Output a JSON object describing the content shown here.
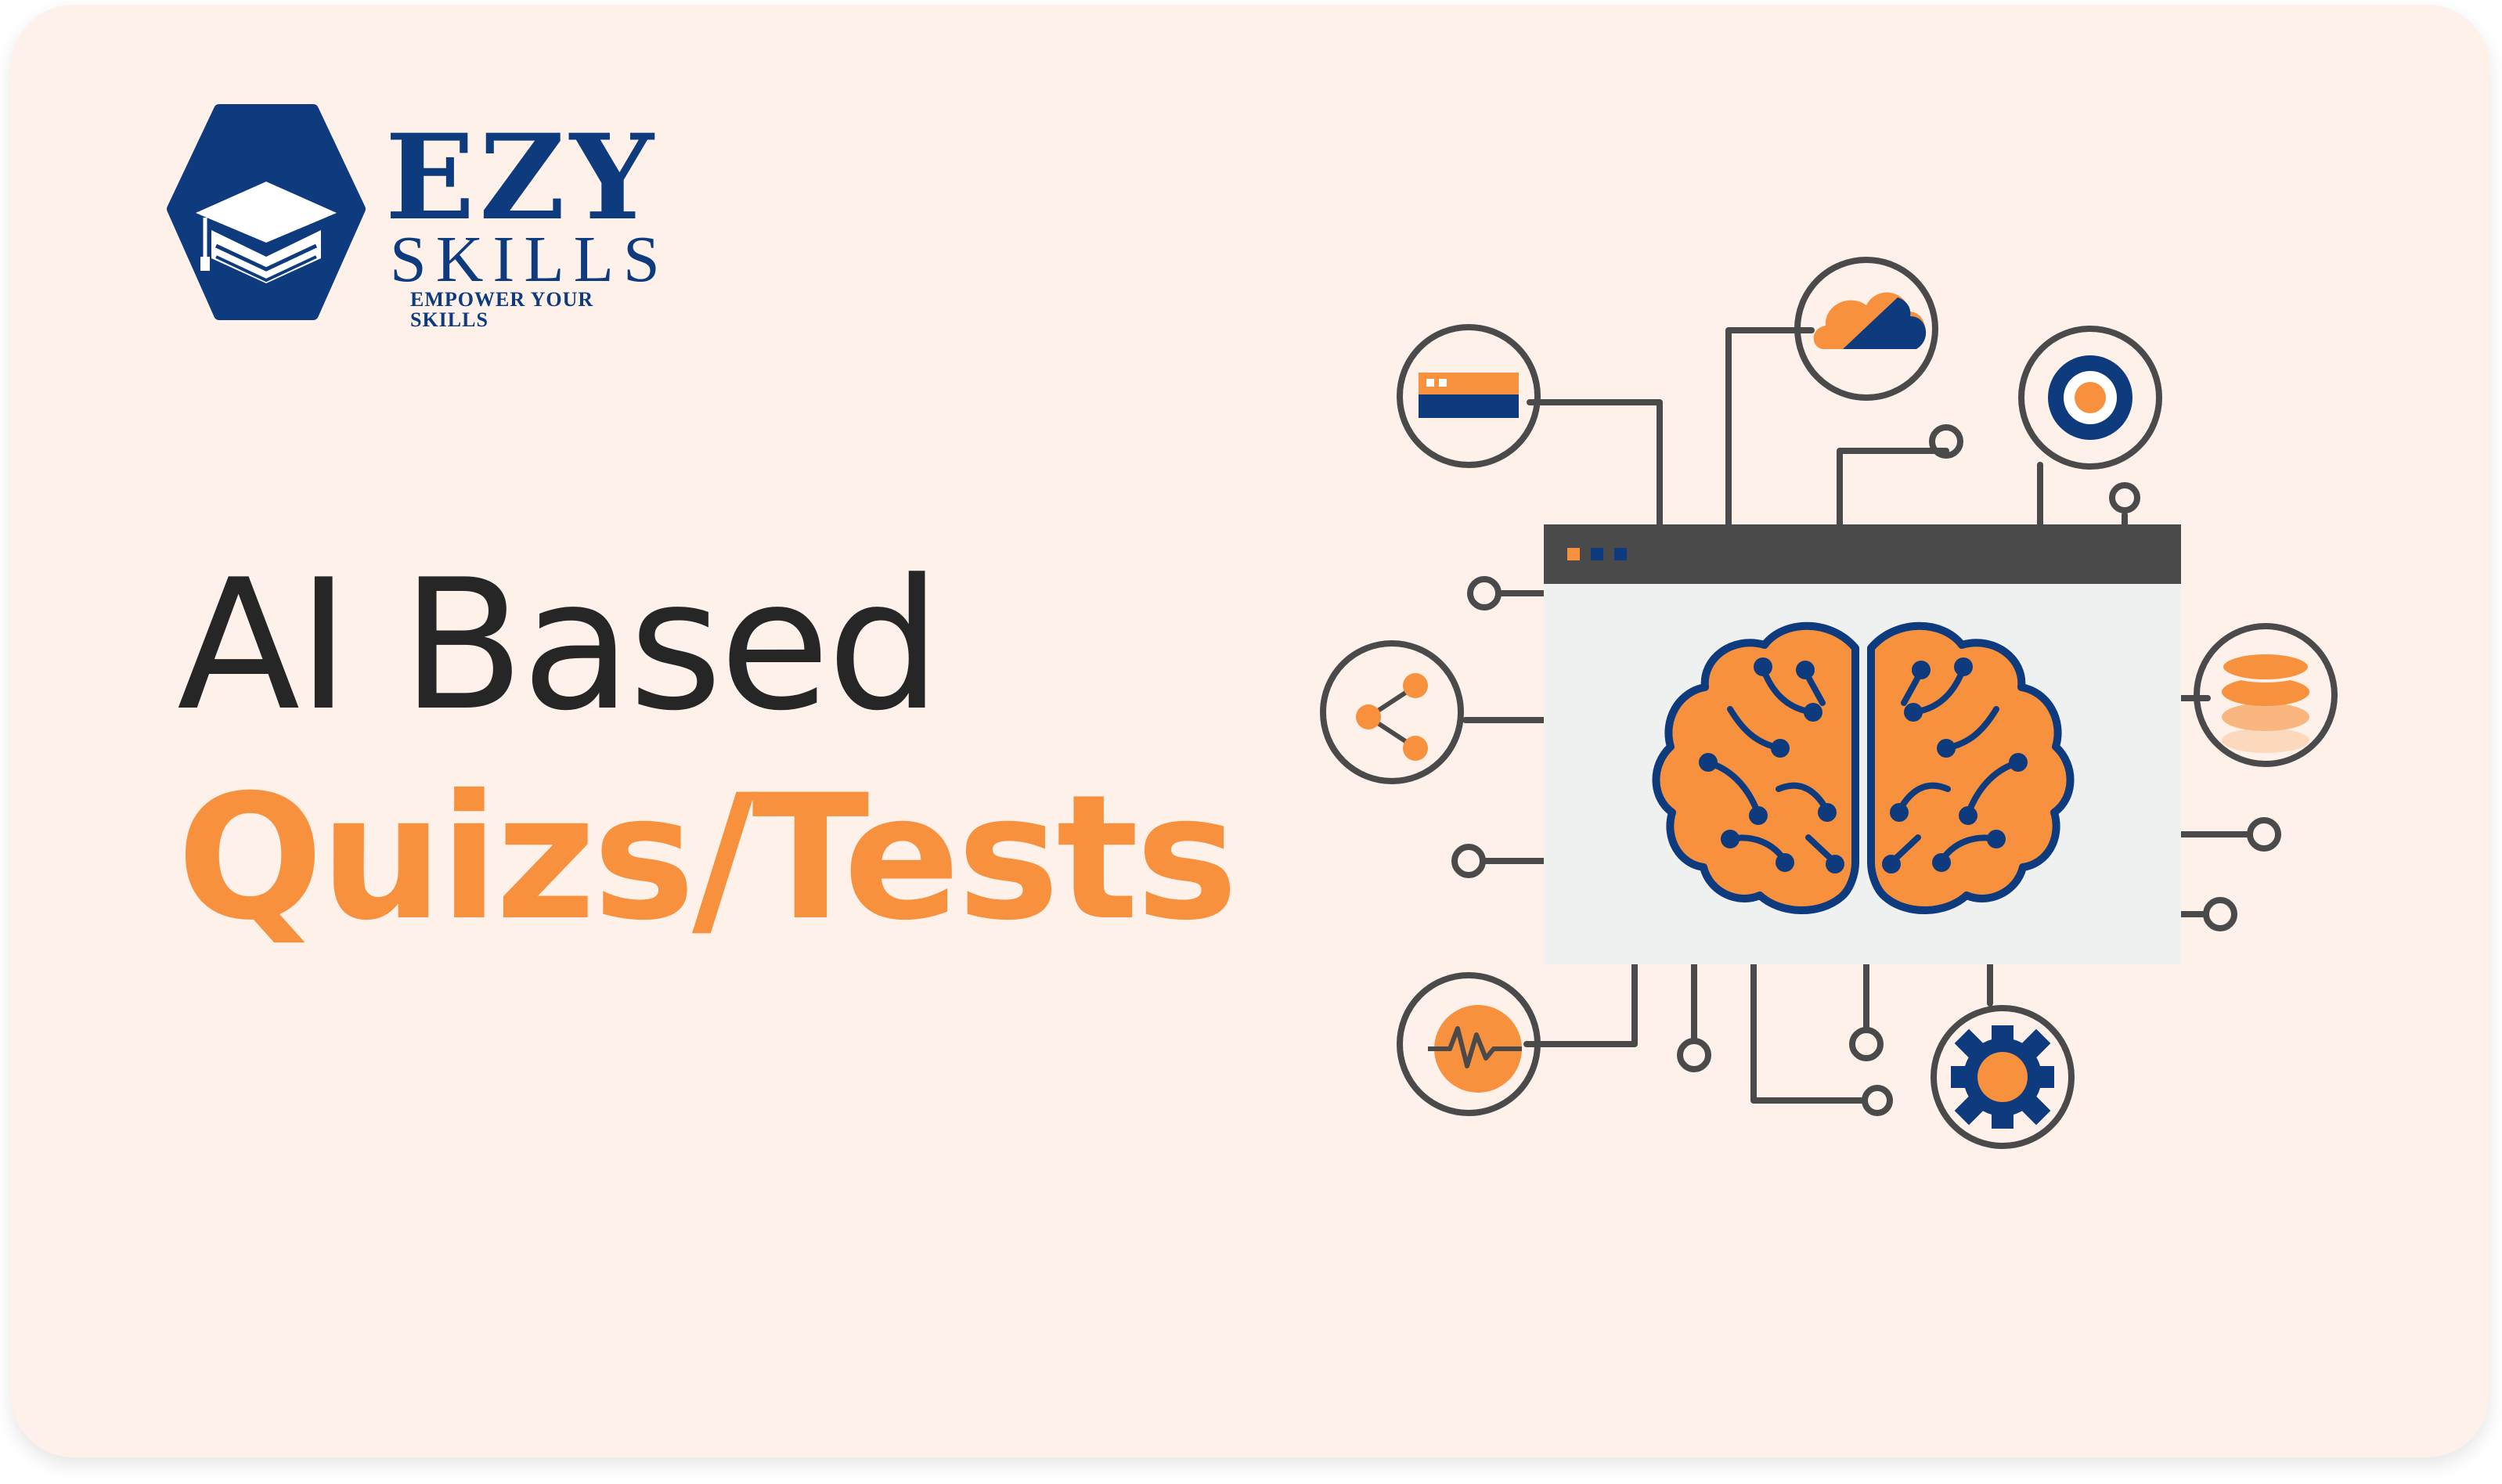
{
  "logo": {
    "name": "EZY",
    "subname": "SKILLS",
    "tagline": "EMPOWER YOUR SKILLS"
  },
  "headline": {
    "line1": "AI Based",
    "line2": "Quizs/Tests"
  },
  "colors": {
    "background": "#fdf1ea",
    "accent_orange": "#f7913d",
    "brand_navy": "#0e3a7e",
    "text_dark": "#262626",
    "line_gray": "#4a4a4a"
  },
  "illustration": {
    "central": "brain-icon",
    "icons": [
      "browser-window-icon",
      "cloud-icon",
      "target-icon",
      "share-icon",
      "database-icon",
      "heartbeat-icon",
      "gear-icon"
    ]
  }
}
